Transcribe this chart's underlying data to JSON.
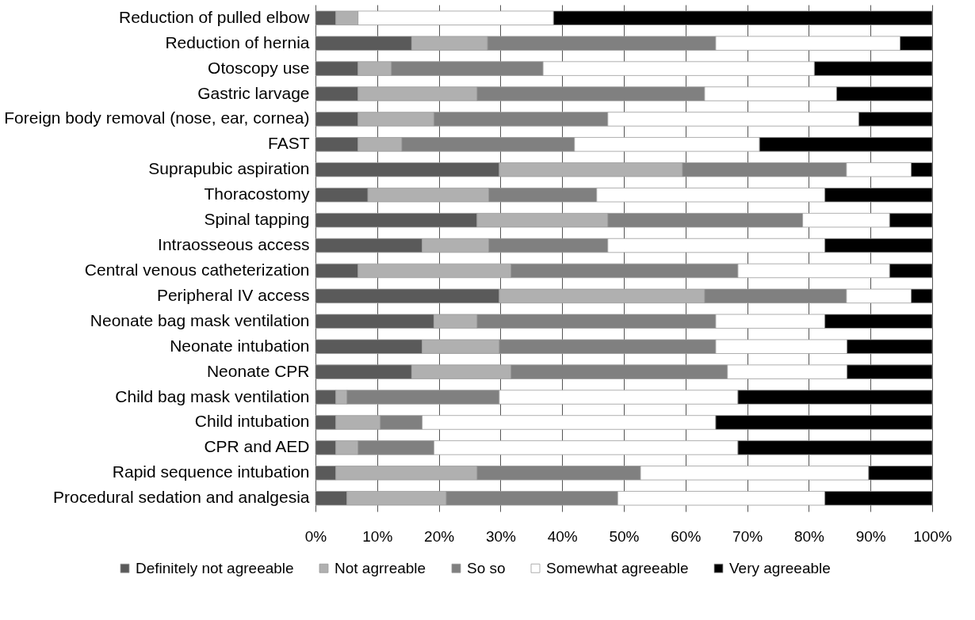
{
  "chart_data": {
    "type": "bar",
    "orientation": "horizontal",
    "stacked": true,
    "grid": "x",
    "legend": "bottom",
    "categories": [
      "Reduction of pulled elbow",
      "Reduction of hernia",
      "Otoscopy use",
      "Gastric larvage",
      "Foreign body removal (nose, ear, cornea)",
      "FAST",
      "Suprapubic aspiration",
      "Thoracostomy",
      "Spinal tapping",
      "Intraosseous access",
      "Central venous catheterization",
      "Peripheral IV access",
      "Neonate bag mask ventilation",
      "Neonate intubation",
      "Neonate CPR",
      "Child bag mask ventilation",
      "Child intubation",
      "CPR and AED",
      "Rapid sequence intubation",
      "Procedural sedation and analgesia"
    ],
    "xlim": [
      0,
      100
    ],
    "xticks": [
      {
        "value": 0,
        "label": "0%"
      },
      {
        "value": 10,
        "label": "10%"
      },
      {
        "value": 20,
        "label": "20%"
      },
      {
        "value": 30,
        "label": "30%"
      },
      {
        "value": 40,
        "label": "40%"
      },
      {
        "value": 50,
        "label": "50%"
      },
      {
        "value": 60,
        "label": "60%"
      },
      {
        "value": 70,
        "label": "70%"
      },
      {
        "value": 80,
        "label": "80%"
      },
      {
        "value": 90,
        "label": "90%"
      },
      {
        "value": 100,
        "label": "100%"
      }
    ],
    "series": [
      {
        "name": "Definitely not agreeable",
        "color": "#5a5a5a",
        "values": [
          3.3,
          15.6,
          6.9,
          6.9,
          6.9,
          6.9,
          29.8,
          8.5,
          26.2,
          17.3,
          6.9,
          29.8,
          19.2,
          17.3,
          15.6,
          3.3,
          3.3,
          3.3,
          3.3,
          5.1
        ]
      },
      {
        "name": "Not agrreable",
        "color": "#b0b0b0",
        "values": [
          3.6,
          12.3,
          5.4,
          19.3,
          12.3,
          7.1,
          29.7,
          19.6,
          21.2,
          10.8,
          24.8,
          33.3,
          7.0,
          12.5,
          16.1,
          1.8,
          7.2,
          3.6,
          22.9,
          16.1
        ]
      },
      {
        "name": "So so",
        "color": "#808080",
        "values": [
          0,
          37.0,
          24.6,
          36.9,
          28.2,
          28.0,
          26.6,
          17.5,
          31.6,
          19.3,
          36.8,
          23.0,
          38.7,
          35.1,
          35.1,
          24.7,
          6.8,
          12.3,
          26.5,
          27.8
        ]
      },
      {
        "name": "Somewhat agreeable",
        "color": "#ffffff",
        "values": [
          31.7,
          29.9,
          44.0,
          21.4,
          40.7,
          30.0,
          10.5,
          37.0,
          14.1,
          35.2,
          24.6,
          10.5,
          17.7,
          21.3,
          19.4,
          38.7,
          47.6,
          49.3,
          37.0,
          33.6
        ]
      },
      {
        "name": "Very agreeable",
        "color": "#000000",
        "values": [
          61.4,
          5.2,
          19.1,
          15.5,
          11.9,
          28.0,
          3.4,
          17.4,
          6.9,
          17.4,
          6.9,
          3.4,
          17.4,
          13.8,
          13.8,
          31.5,
          35.1,
          31.5,
          10.3,
          17.4
        ]
      }
    ]
  }
}
